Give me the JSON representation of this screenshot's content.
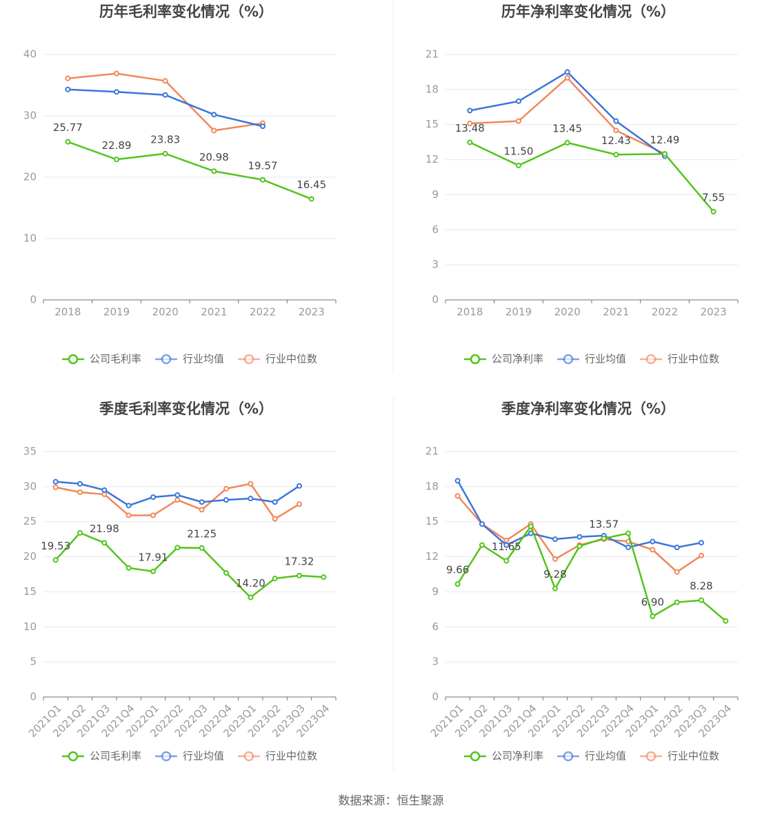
{
  "chart_data": [
    {
      "type": "line",
      "title": "历年毛利率变化情况（%）",
      "categories": [
        "2018",
        "2019",
        "2020",
        "2021",
        "2022",
        "2023"
      ],
      "ylim": [
        0,
        40
      ],
      "yticks": [
        0,
        10,
        20,
        30,
        40
      ],
      "grid": true,
      "legend": "bottom",
      "series": [
        {
          "name": "公司毛利率",
          "color": "#52c41a",
          "values": [
            25.77,
            22.89,
            23.83,
            20.98,
            19.57,
            16.45
          ],
          "value_labels": [
            "25.77",
            "22.89",
            "23.83",
            "20.98",
            "19.57",
            "16.45"
          ]
        },
        {
          "name": "行业均值",
          "color": "#3a75d9",
          "values": [
            34.3,
            33.9,
            33.4,
            30.2,
            28.3,
            null
          ]
        },
        {
          "name": "行业中位数",
          "color": "#f0875a",
          "values": [
            36.1,
            36.9,
            35.7,
            27.6,
            28.8,
            null
          ]
        }
      ]
    },
    {
      "type": "line",
      "title": "历年净利率变化情况（%）",
      "categories": [
        "2018",
        "2019",
        "2020",
        "2021",
        "2022",
        "2023"
      ],
      "ylim": [
        0,
        21
      ],
      "yticks": [
        0,
        3,
        6,
        9,
        12,
        15,
        18,
        21
      ],
      "grid": true,
      "legend": "bottom",
      "series": [
        {
          "name": "公司净利率",
          "color": "#52c41a",
          "values": [
            13.48,
            11.5,
            13.45,
            12.43,
            12.49,
            7.55
          ],
          "value_labels": [
            "13.48",
            "11.50",
            "13.45",
            "12.43",
            "12.49",
            "7.55"
          ]
        },
        {
          "name": "行业均值",
          "color": "#3a75d9",
          "values": [
            16.2,
            17.0,
            19.5,
            15.3,
            12.3,
            null
          ]
        },
        {
          "name": "行业中位数",
          "color": "#f0875a",
          "values": [
            15.1,
            15.3,
            19.0,
            14.5,
            12.5,
            null
          ]
        }
      ]
    },
    {
      "type": "line",
      "title": "季度毛利率变化情况（%）",
      "categories": [
        "2021Q1",
        "2021Q2",
        "2021Q3",
        "2021Q4",
        "2022Q1",
        "2022Q2",
        "2022Q3",
        "2022Q4",
        "2023Q1",
        "2023Q2",
        "2023Q3",
        "2023Q4"
      ],
      "ylim": [
        0,
        35
      ],
      "yticks": [
        0,
        5,
        10,
        15,
        20,
        25,
        30,
        35
      ],
      "grid": true,
      "legend": "bottom",
      "series": [
        {
          "name": "公司毛利率",
          "color": "#52c41a",
          "values": [
            19.53,
            23.4,
            21.98,
            18.4,
            17.91,
            21.3,
            21.25,
            17.7,
            14.2,
            16.9,
            17.32,
            17.1
          ],
          "value_labels": [
            "19.53",
            null,
            "21.98",
            null,
            "17.91",
            null,
            "21.25",
            null,
            "14.20",
            null,
            "17.32",
            null
          ]
        },
        {
          "name": "行业均值",
          "color": "#3a75d9",
          "values": [
            30.7,
            30.4,
            29.5,
            27.3,
            28.5,
            28.8,
            27.8,
            28.1,
            28.3,
            27.8,
            30.1,
            null
          ]
        },
        {
          "name": "行业中位数",
          "color": "#f0875a",
          "values": [
            29.9,
            29.2,
            28.9,
            25.9,
            25.9,
            28.1,
            26.7,
            29.7,
            30.4,
            25.4,
            27.5,
            null
          ]
        }
      ]
    },
    {
      "type": "line",
      "title": "季度净利率变化情况（%）",
      "categories": [
        "2021Q1",
        "2021Q2",
        "2021Q3",
        "2021Q4",
        "2022Q1",
        "2022Q2",
        "2022Q3",
        "2022Q4",
        "2023Q1",
        "2023Q2",
        "2023Q3",
        "2023Q4"
      ],
      "ylim": [
        0,
        21
      ],
      "yticks": [
        0,
        3,
        6,
        9,
        12,
        15,
        18,
        21
      ],
      "grid": true,
      "legend": "bottom",
      "series": [
        {
          "name": "公司净利率",
          "color": "#52c41a",
          "values": [
            9.66,
            13.0,
            11.65,
            14.6,
            9.28,
            12.9,
            13.57,
            14.0,
            6.9,
            8.1,
            8.28,
            6.5
          ],
          "value_labels": [
            "9.66",
            null,
            "11.65",
            null,
            "9.28",
            null,
            "13.57",
            null,
            "6.90",
            null,
            "8.28",
            null
          ]
        },
        {
          "name": "行业均值",
          "color": "#3a75d9",
          "values": [
            18.5,
            14.8,
            13.0,
            14.0,
            13.5,
            13.7,
            13.8,
            12.8,
            13.3,
            12.8,
            13.2,
            null
          ]
        },
        {
          "name": "行业中位数",
          "color": "#f0875a",
          "values": [
            17.2,
            14.8,
            13.4,
            14.8,
            11.8,
            13.0,
            13.5,
            13.3,
            12.6,
            10.7,
            12.1,
            null
          ]
        }
      ]
    }
  ],
  "source": "数据来源：恒生聚源"
}
